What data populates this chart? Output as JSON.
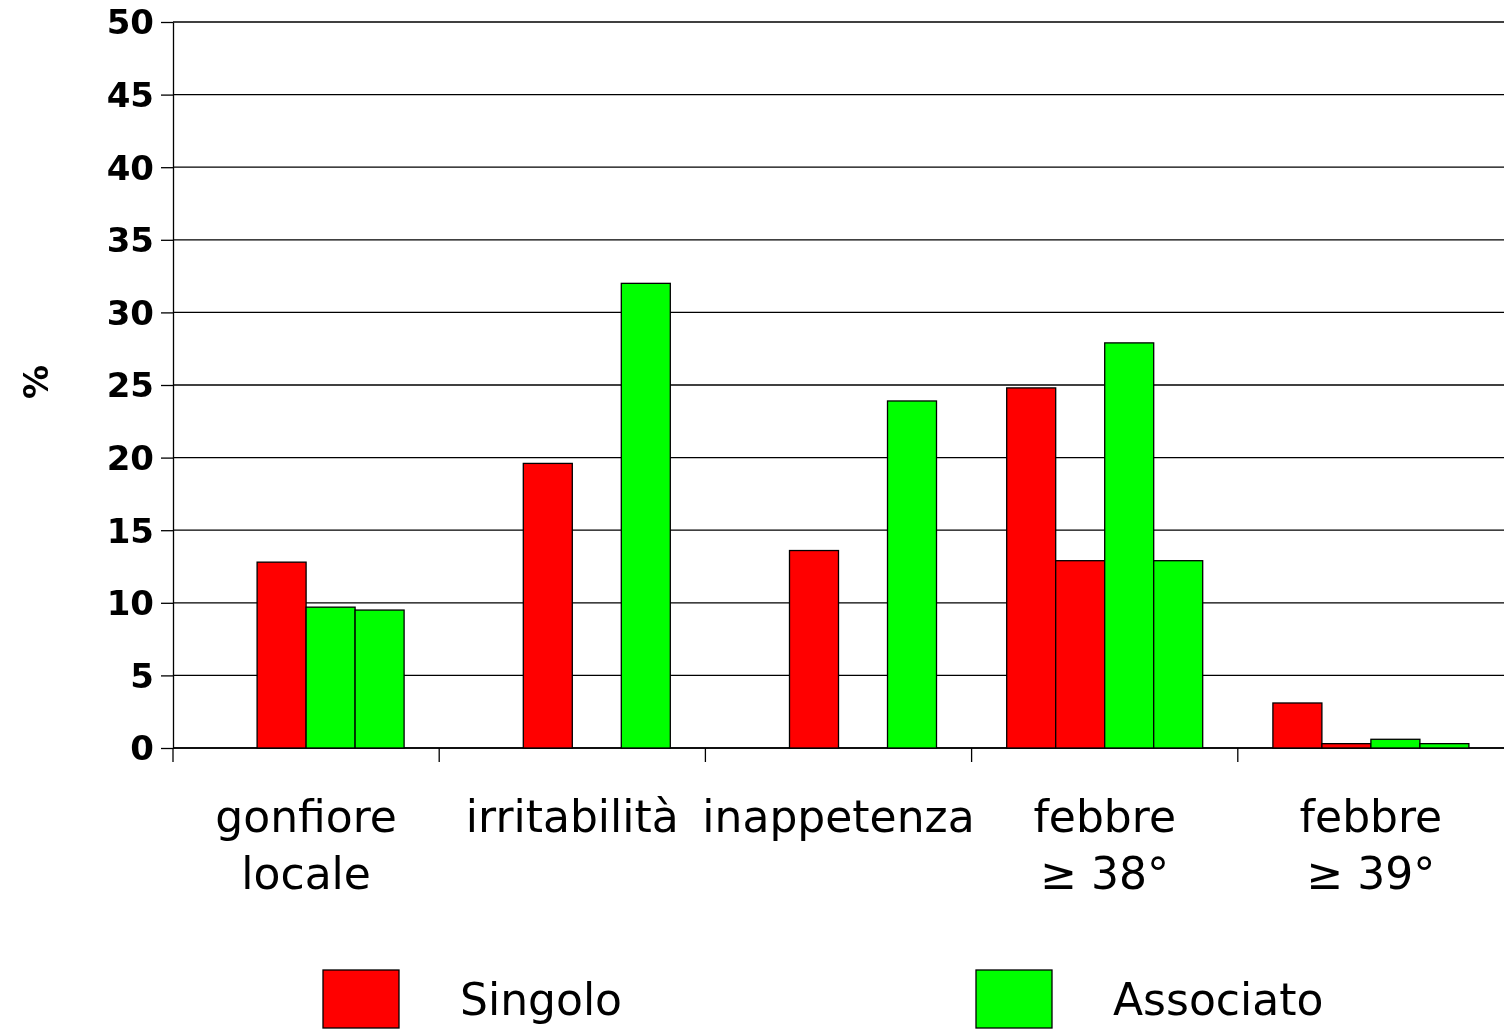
{
  "chart_data": {
    "type": "bar",
    "ylabel": "%",
    "categories": [
      "gonfiore\nlocale",
      "irritabilità",
      "inappetenza",
      "febbre\n≥ 38°",
      "febbre\n≥ 39°"
    ],
    "series": [
      {
        "name": "Singolo",
        "color": "#ff0000",
        "values": [
          null,
          null,
          null,
          24.8,
          3.1
        ]
      },
      {
        "color": "#ff0000",
        "values": [
          12.8,
          19.6,
          13.6,
          12.9,
          0.3
        ]
      },
      {
        "name": "Associato",
        "color": "#00ff00",
        "values": [
          9.7,
          null,
          null,
          27.9,
          0.6
        ]
      },
      {
        "color": "#00ff00",
        "values": [
          9.5,
          32,
          23.9,
          12.9,
          0.3
        ]
      }
    ],
    "ylim": [
      0,
      50
    ],
    "yticks": [
      0,
      5,
      10,
      15,
      20,
      25,
      30,
      35,
      40,
      45,
      50
    ],
    "grid": "y",
    "legend": "bottom"
  }
}
